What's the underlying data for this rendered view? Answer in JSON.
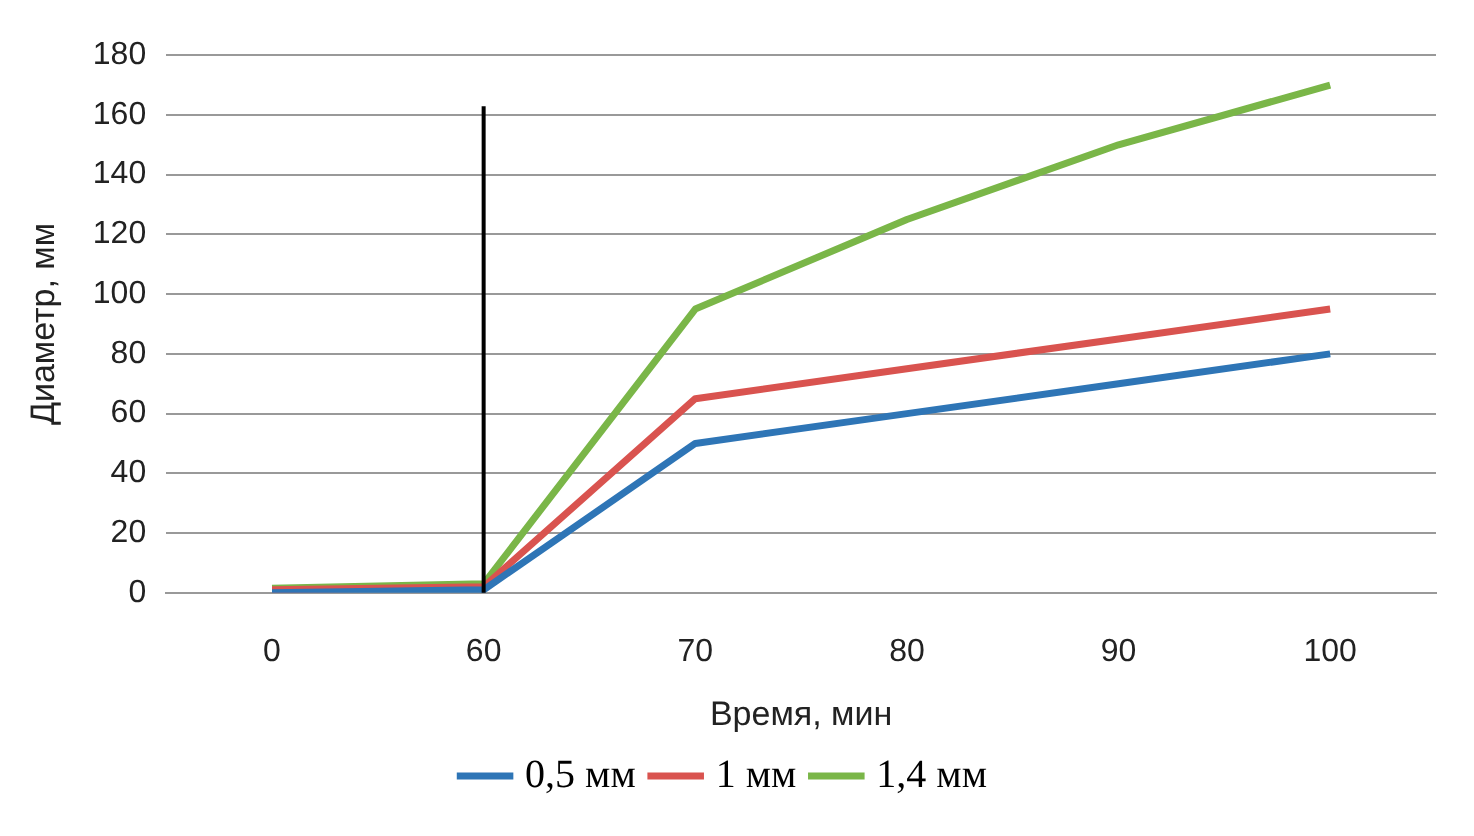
{
  "chart_data": {
    "type": "line",
    "xlabel": "Время, мин",
    "ylabel": "Диаметр, мм",
    "categories": [
      "0",
      "60",
      "70",
      "80",
      "90",
      "100"
    ],
    "series": [
      {
        "name": "0,5 мм",
        "color": "#2e75b6",
        "values": [
          0,
          1,
          50,
          60,
          70,
          80
        ]
      },
      {
        "name": "1 мм",
        "color": "#d9534f",
        "values": [
          1,
          2,
          65,
          75,
          85,
          95
        ]
      },
      {
        "name": "1,4 мм",
        "color": "#7ab648",
        "values": [
          1.5,
          3,
          95,
          125,
          150,
          170
        ]
      }
    ],
    "ylim": [
      0,
      180
    ],
    "yticks": [
      0,
      20,
      40,
      60,
      80,
      100,
      120,
      140,
      160,
      180
    ],
    "ref_lines": [
      {
        "axis": "x",
        "value": "60",
        "color": "#000000"
      }
    ],
    "grid": "y",
    "legend": "bottom",
    "marker": "none",
    "line_style": "solid"
  }
}
